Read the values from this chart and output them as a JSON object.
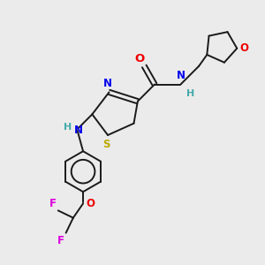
{
  "bg_color": "#ebebeb",
  "bond_color": "#1a1a1a",
  "colors": {
    "N": "#0000ee",
    "O": "#ee0000",
    "S": "#bbaa00",
    "F": "#dd00dd",
    "H_label": "#44aaaa",
    "C": "#1a1a1a"
  },
  "lw": 1.4,
  "fs": 8.5
}
